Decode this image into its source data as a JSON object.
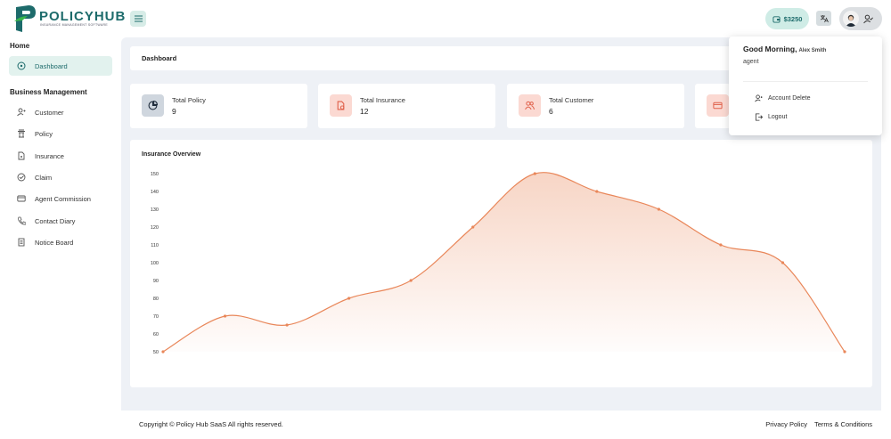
{
  "brand": {
    "title": "POLICYHUB",
    "subtitle": "INSURANCE MANAGEMENT SOFTWARE",
    "colors": {
      "primary": "#1d6b6b",
      "accent": "#e9875a",
      "logo_green": "#39b54a"
    }
  },
  "sidebar": {
    "home_title": "Home",
    "dashboard_label": "Dashboard",
    "business_title": "Business Management",
    "items": [
      {
        "label": "Customer",
        "icon": "user-plus-icon"
      },
      {
        "label": "Policy",
        "icon": "policy-icon"
      },
      {
        "label": "Insurance",
        "icon": "insurance-icon"
      },
      {
        "label": "Claim",
        "icon": "check-circle-icon"
      },
      {
        "label": "Agent Commission",
        "icon": "credit-card-icon"
      },
      {
        "label": "Contact Diary",
        "icon": "phone-icon"
      },
      {
        "label": "Notice Board",
        "icon": "notice-icon"
      }
    ]
  },
  "topbar": {
    "balance": "$3250"
  },
  "breadcrumb": "Dashboard",
  "stats": [
    {
      "label": "Total Policy",
      "value": "9"
    },
    {
      "label": "Total Insurance",
      "value": "12"
    },
    {
      "label": "Total Customer",
      "value": "6"
    },
    {
      "label": "",
      "value": ""
    }
  ],
  "chart_title": "Insurance Overview",
  "chart_data": {
    "type": "area",
    "title": "Insurance Overview",
    "xlabel": "",
    "ylabel": "",
    "ylim": [
      50,
      150
    ],
    "yticks": [
      50,
      60,
      70,
      80,
      90,
      100,
      110,
      120,
      130,
      140,
      150
    ],
    "grid": false,
    "series": [
      {
        "values": [
          50,
          70,
          65,
          80,
          90,
          120,
          150,
          140,
          130,
          110,
          100,
          50
        ]
      }
    ],
    "color": "#e9875a"
  },
  "footer": {
    "copyright": "Copyright © Policy Hub SaaS All rights reserved.",
    "privacy": "Privacy Policy",
    "terms": "Terms & Conditions"
  },
  "dropdown": {
    "greeting": "Good Morning,",
    "user_name": "Alex Smith",
    "role": "agent",
    "account_delete": "Account Delete",
    "logout": "Logout"
  }
}
